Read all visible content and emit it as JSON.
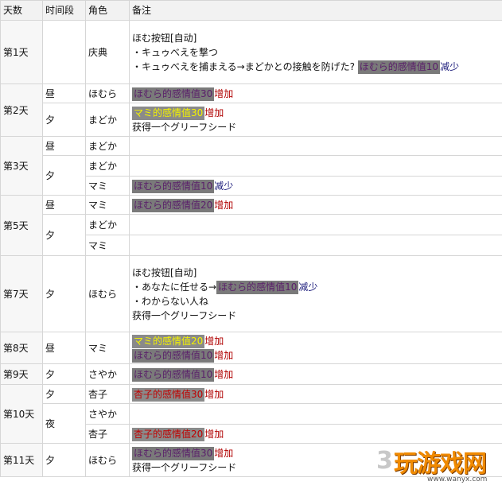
{
  "headers": [
    "天数",
    "时间段",
    "角色",
    "备注"
  ],
  "rows": {
    "d1": {
      "day": "第1天",
      "time": "",
      "char": "庆典",
      "l1": "ほむ按钮[自动]",
      "l2": "・キュゥべえを撃つ",
      "l3a": "・キュゥべえを捕まえる→まどかとの接触を防げた?",
      "l3b": "ほむら的感情值10",
      "l3c": "减少"
    },
    "d2a": {
      "day": "第2天",
      "time": "昼",
      "char": "ほむら",
      "hl": "ほむら的感情值30",
      "tail": "增加"
    },
    "d2b": {
      "time": "夕",
      "char": "まどか",
      "hl": "マミ的感情值30",
      "tail": "增加",
      "l2": "获得一个グリーフシード"
    },
    "d3a": {
      "day": "第3天",
      "time": "昼",
      "char": "まどか"
    },
    "d3b": {
      "time": "夕",
      "char": "まどか"
    },
    "d3c": {
      "char": "マミ",
      "hl": "ほむら的感情值10",
      "tail": "减少"
    },
    "d5a": {
      "day": "第5天",
      "time": "昼",
      "char": "マミ",
      "hl": "ほむら的感情值20",
      "tail": "增加"
    },
    "d5b": {
      "time": "夕",
      "char": "まどか"
    },
    "d5c": {
      "char": "マミ"
    },
    "d7": {
      "day": "第7天",
      "time": "夕",
      "char": "ほむら",
      "l1": "ほむ按钮[自动]",
      "l2a": "・あなたに任せる→",
      "l2b": "ほむら的感情值10",
      "l2c": "减少",
      "l3": "・わからない人ね",
      "l4": "获得一个グリーフシード"
    },
    "d8": {
      "day": "第8天",
      "time": "昼",
      "char": "マミ",
      "hl1": "マミ的感情值20",
      "tail1": "增加",
      "hl2": "ほむら的感情值10",
      "tail2": "增加"
    },
    "d9": {
      "day": "第9天",
      "time": "夕",
      "char": "さやか",
      "hl": "ほむら的感情值10",
      "tail": "增加"
    },
    "d10a": {
      "day": "第10天",
      "time": "夕",
      "char": "杏子",
      "hl": "杏子的感情值30",
      "tail": "增加"
    },
    "d10b": {
      "time": "夜",
      "char": "さやか"
    },
    "d10c": {
      "char": "杏子",
      "hl": "杏子的感情值20",
      "tail": "增加"
    },
    "d11": {
      "day": "第11天",
      "time": "夕",
      "char": "ほむら",
      "hl": "ほむら的感情值30",
      "tail": "增加",
      "l2": "获得一个グリーフシード"
    }
  },
  "watermark": {
    "three": "3",
    "main": "玩游戏网",
    "url": "www.wanyx.com"
  },
  "colors": {
    "homura_text": "#5a1f6a",
    "mami_text": "#f3f300",
    "kyoko_text": "#c00000",
    "highlight_bg": "#7a7a7a",
    "increase": "#b00000",
    "decrease": "#1a1a7a"
  }
}
